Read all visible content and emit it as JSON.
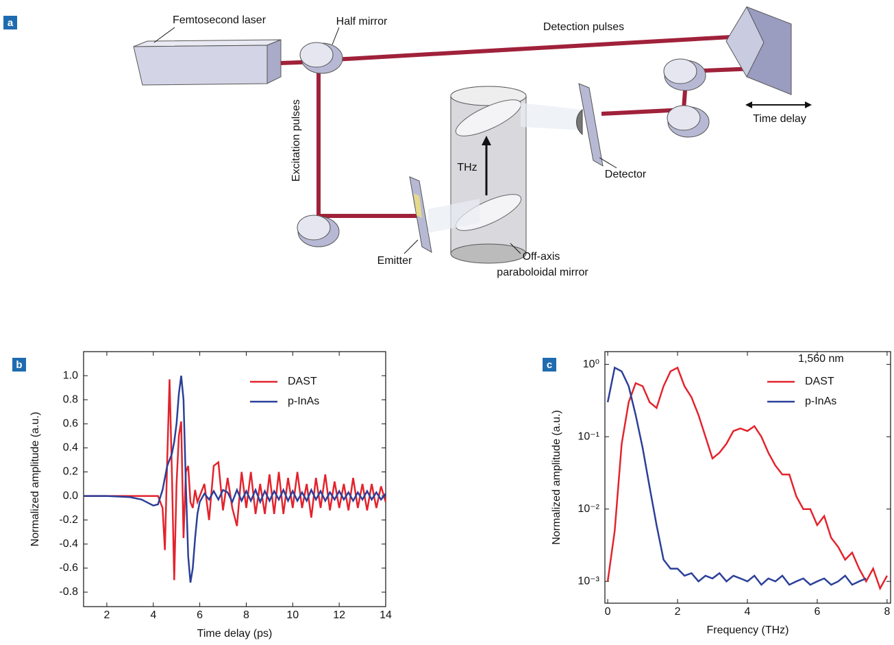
{
  "diagram": {
    "panel_label": "a",
    "labels": {
      "laser": "Femtosecond laser",
      "half_mirror": "Half mirror",
      "detection": "Detection pulses",
      "excitation": "Excitation pulses",
      "thz": "THz",
      "detector": "Detector",
      "time_delay": "Time delay",
      "emitter": "Emitter",
      "mirror_line1": "Off-axis",
      "mirror_line2": "paraboloidal mirror"
    }
  },
  "chart_data": [
    {
      "type": "line",
      "panel_label": "b",
      "xlabel": "Time delay (ps)",
      "ylabel": "Normalized amplitude (a.u.)",
      "xlim": [
        1,
        14
      ],
      "xticks": [
        2,
        4,
        6,
        8,
        10,
        12,
        14
      ],
      "ylim": [
        -0.92,
        1.2
      ],
      "yticks": [
        -0.8,
        -0.6,
        -0.4,
        -0.2,
        {
          "value": 0,
          "label": "0.0"
        },
        0.2,
        0.4,
        0.6,
        0.8,
        {
          "value": 1,
          "label": "1.0"
        }
      ],
      "log_y": false,
      "x": [
        1,
        2,
        3,
        3.5,
        4,
        4.2,
        4.4,
        4.5,
        4.6,
        4.7,
        4.8,
        4.9,
        5.0,
        5.1,
        5.2,
        5.3,
        5.4,
        5.5,
        5.6,
        5.7,
        5.8,
        5.9,
        6.0,
        6.2,
        6.4,
        6.6,
        6.8,
        7.0,
        7.2,
        7.4,
        7.6,
        7.8,
        8.0,
        8.2,
        8.4,
        8.6,
        8.8,
        9.0,
        9.2,
        9.4,
        9.6,
        9.8,
        10.0,
        10.2,
        10.4,
        10.6,
        10.8,
        11.0,
        11.2,
        11.4,
        11.6,
        11.8,
        12.0,
        12.2,
        12.4,
        12.6,
        12.8,
        13.0,
        13.2,
        13.4,
        13.6,
        13.8,
        14.0
      ],
      "series": [
        {
          "name": "DAST",
          "color": "#e3232c",
          "values": [
            0,
            0,
            0,
            0,
            0,
            0,
            -0.1,
            -0.45,
            0.3,
            0.97,
            0.2,
            -0.7,
            0.1,
            0.5,
            0.62,
            -0.35,
            0.2,
            0.25,
            -0.05,
            -0.1,
            0.05,
            -0.05,
            0,
            0.1,
            -0.2,
            0.25,
            0.28,
            -0.12,
            0.15,
            -0.1,
            -0.25,
            0.2,
            -0.1,
            0.2,
            -0.15,
            0.1,
            -0.15,
            0.18,
            -0.15,
            0.2,
            -0.15,
            0.15,
            -0.1,
            0.2,
            -0.1,
            0.1,
            -0.18,
            0.15,
            -0.1,
            0.18,
            -0.12,
            0.12,
            -0.1,
            0.1,
            -0.12,
            0.15,
            -0.1,
            0.1,
            -0.12,
            0.1,
            -0.1,
            0.08,
            -0.05
          ]
        },
        {
          "name": "p-InAs",
          "color": "#2b3f99",
          "values": [
            0,
            0,
            -0.01,
            -0.03,
            -0.08,
            -0.07,
            0.05,
            0.15,
            0.25,
            0.3,
            0.35,
            0.45,
            0.6,
            0.85,
            1.0,
            0.8,
            0.1,
            -0.5,
            -0.72,
            -0.6,
            -0.35,
            -0.15,
            -0.05,
            0.02,
            -0.03,
            0.04,
            -0.03,
            0.05,
            0.03,
            -0.05,
            0.05,
            -0.04,
            0.04,
            -0.04,
            0.05,
            -0.05,
            0.04,
            -0.04,
            0.04,
            -0.03,
            0.05,
            -0.04,
            0.04,
            -0.04,
            0.03,
            -0.04,
            0.05,
            -0.03,
            0.04,
            -0.04,
            0.03,
            -0.03,
            0.04,
            -0.03,
            0.03,
            -0.04,
            0.03,
            -0.03,
            0.04,
            -0.03,
            0.03,
            -0.03,
            0.02
          ]
        }
      ]
    },
    {
      "type": "line",
      "panel_label": "c",
      "xlabel": "Frequency (THz)",
      "ylabel": "Normalized amplitude (a.u.)",
      "annotation": "1,560 nm",
      "xlim": [
        -0.08,
        8.1
      ],
      "xticks": [
        0,
        2,
        4,
        6,
        8
      ],
      "ylim": [
        0.0005,
        1.5
      ],
      "log_y": true,
      "yticks": [
        {
          "value": 0.001,
          "label": "10⁻³"
        },
        {
          "value": 0.01,
          "label": "10⁻²"
        },
        {
          "value": 0.1,
          "label": "10⁻¹"
        },
        {
          "value": 1,
          "label": "10⁰"
        }
      ],
      "x": [
        0,
        0.2,
        0.4,
        0.6,
        0.8,
        1.0,
        1.2,
        1.4,
        1.6,
        1.8,
        2.0,
        2.2,
        2.4,
        2.6,
        2.8,
        3.0,
        3.2,
        3.4,
        3.6,
        3.8,
        4.0,
        4.2,
        4.4,
        4.6,
        4.8,
        5.0,
        5.2,
        5.4,
        5.6,
        5.8,
        6.0,
        6.2,
        6.4,
        6.6,
        6.8,
        7.0,
        7.2,
        7.4,
        7.6,
        7.8,
        8.0
      ],
      "series": [
        {
          "name": "DAST",
          "color": "#e3232c",
          "values": [
            0.001,
            0.005,
            0.08,
            0.3,
            0.55,
            0.5,
            0.3,
            0.25,
            0.5,
            0.8,
            0.9,
            0.5,
            0.35,
            0.2,
            0.1,
            0.05,
            0.06,
            0.08,
            0.12,
            0.13,
            0.12,
            0.14,
            0.1,
            0.06,
            0.04,
            0.03,
            0.03,
            0.015,
            0.01,
            0.01,
            0.006,
            0.008,
            0.004,
            0.003,
            0.002,
            0.0025,
            0.0015,
            0.001,
            0.0015,
            0.0008,
            0.0012
          ]
        },
        {
          "name": "p-InAs",
          "color": "#2b3f99",
          "values": [
            0.3,
            0.9,
            0.8,
            0.5,
            0.2,
            0.07,
            0.02,
            0.006,
            0.002,
            0.0015,
            0.0015,
            0.0012,
            0.0013,
            0.001,
            0.0012,
            0.0011,
            0.0013,
            0.001,
            0.0012,
            0.0011,
            0.001,
            0.0012,
            0.0009,
            0.0011,
            0.001,
            0.0012,
            0.0009,
            0.001,
            0.0011,
            0.0009,
            0.001,
            0.0011,
            0.0009,
            0.001,
            0.0012,
            0.0009,
            0.001,
            0.0011,
            null,
            null,
            null
          ]
        }
      ]
    }
  ]
}
